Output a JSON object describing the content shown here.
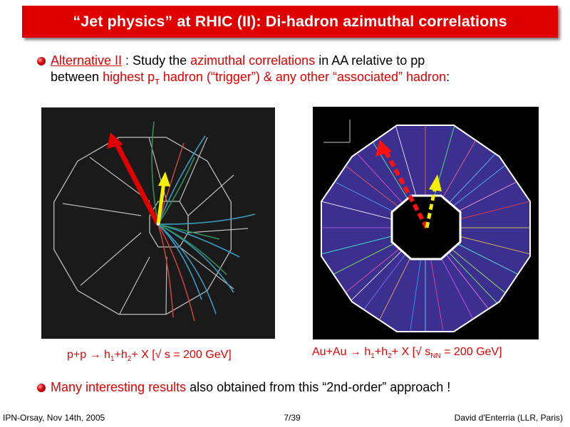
{
  "title": "“Jet physics” at RHIC (II): Di-hadron azimuthal correlations",
  "bullet1": {
    "link": "Alternative II",
    "t1": " : Study the ",
    "r1": "azimuthal correlations",
    "t2": " in AA relative to pp",
    "t3": "between ",
    "r2": "highest p",
    "r2sub": "T",
    "t4": " hadron (“trigger”) & any other “associated” hadron",
    "t5": ":"
  },
  "caption_pp": {
    "a": "p+p → h",
    "s1": "1",
    "b": "+h",
    "s2": "2",
    "c": "+ X  [√ s = 200 GeV]"
  },
  "caption_auau": {
    "a": "Au+Au → h",
    "s1": "1",
    "b": "+h",
    "s2": "2",
    "c": "+ X [√ s",
    "s3": "NN",
    "d": " = 200 GeV]"
  },
  "bullet2": {
    "r1": "Many interesting results",
    "t1": " also obtained from this “2nd-order” approach !"
  },
  "footer": {
    "left": "IPN-Orsay, Nov 14th, 2005",
    "center": "7/39",
    "right": "David d'Enterria (LLR, Paris)"
  },
  "colors": {
    "title_bg": "#e00000",
    "accent": "#e00000"
  }
}
